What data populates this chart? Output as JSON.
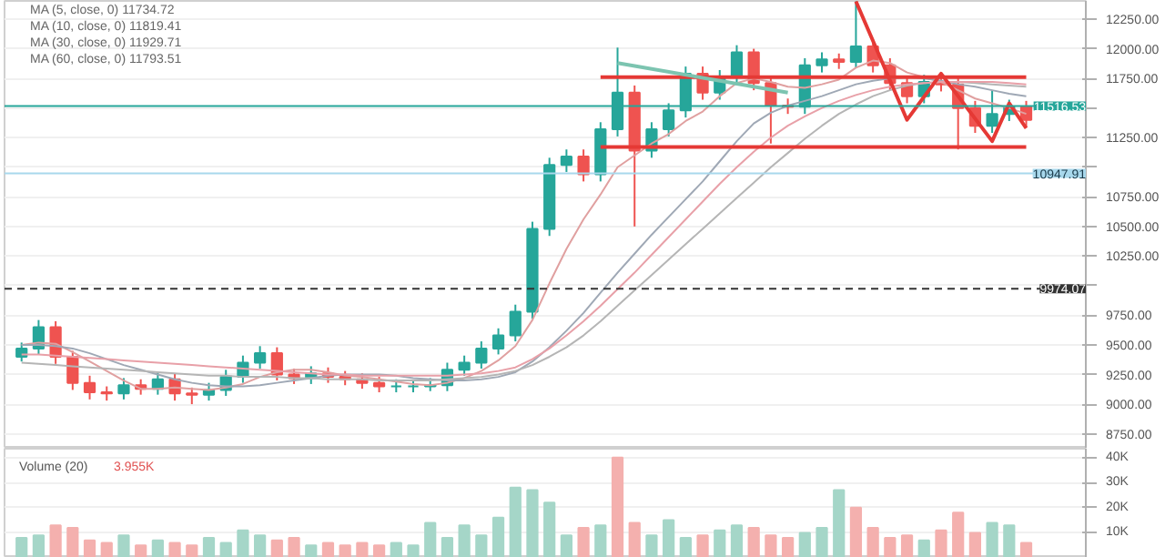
{
  "chart_data": [
    {
      "type": "candlestick",
      "categories": [
        null,
        null,
        null,
        null,
        null,
        null,
        null,
        null,
        null,
        null,
        null,
        null,
        null,
        null,
        null,
        null,
        null,
        null,
        null,
        null,
        null,
        null,
        null,
        null,
        null,
        null,
        null,
        null,
        null,
        null,
        null,
        null,
        null,
        null,
        null,
        null,
        null,
        null,
        null,
        null,
        null,
        null,
        null,
        null,
        null,
        null,
        null,
        null,
        null,
        null,
        null,
        null,
        null,
        null,
        null,
        null,
        null,
        null,
        null,
        null
      ],
      "ohlc": [
        [
          9400,
          9520,
          9360,
          9470
        ],
        [
          9470,
          9710,
          9420,
          9650
        ],
        [
          9650,
          9700,
          9340,
          9400
        ],
        [
          9400,
          9450,
          9120,
          9180
        ],
        [
          9180,
          9240,
          9040,
          9100
        ],
        [
          9100,
          9150,
          9030,
          9090
        ],
        [
          9090,
          9220,
          9040,
          9160
        ],
        [
          9160,
          9210,
          9080,
          9130
        ],
        [
          9130,
          9270,
          9080,
          9210
        ],
        [
          9210,
          9260,
          9030,
          9090
        ],
        [
          9090,
          9140,
          9000,
          9080
        ],
        [
          9080,
          9180,
          9030,
          9120
        ],
        [
          9120,
          9290,
          9070,
          9230
        ],
        [
          9230,
          9410,
          9180,
          9350
        ],
        [
          9350,
          9490,
          9300,
          9430
        ],
        [
          9430,
          9480,
          9200,
          9250
        ],
        [
          9250,
          9300,
          9170,
          9220
        ],
        [
          9220,
          9320,
          9170,
          9260
        ],
        [
          9260,
          9310,
          9180,
          9230
        ],
        [
          9230,
          9280,
          9160,
          9210
        ],
        [
          9210,
          9260,
          9130,
          9180
        ],
        [
          9180,
          9230,
          9100,
          9150
        ],
        [
          9150,
          9210,
          9100,
          9150
        ],
        [
          9150,
          9200,
          9100,
          9150
        ],
        [
          9150,
          9220,
          9110,
          9160
        ],
        [
          9160,
          9350,
          9110,
          9290
        ],
        [
          9290,
          9410,
          9240,
          9350
        ],
        [
          9350,
          9530,
          9300,
          9470
        ],
        [
          9470,
          9640,
          9420,
          9580
        ],
        [
          9580,
          9840,
          9530,
          9780
        ],
        [
          9780,
          10540,
          9720,
          10480
        ],
        [
          10480,
          11080,
          10420,
          11020
        ],
        [
          11020,
          11150,
          10960,
          11090
        ],
        [
          11090,
          11150,
          10880,
          10940
        ],
        [
          10940,
          11380,
          10880,
          11320
        ],
        [
          11320,
          12010,
          11260,
          11630
        ],
        [
          11630,
          11690,
          10500,
          11140
        ],
        [
          11140,
          11380,
          11080,
          11320
        ],
        [
          11320,
          11540,
          11260,
          11480
        ],
        [
          11480,
          11850,
          11420,
          11790
        ],
        [
          11790,
          11850,
          11570,
          11630
        ],
        [
          11630,
          11820,
          11570,
          11760
        ],
        [
          11760,
          12030,
          11700,
          11970
        ],
        [
          11970,
          12000,
          11650,
          11710
        ],
        [
          11710,
          11770,
          11200,
          11520
        ],
        [
          11520,
          11580,
          11450,
          11510
        ],
        [
          11510,
          11920,
          11450,
          11860
        ],
        [
          11860,
          11970,
          11800,
          11910
        ],
        [
          11910,
          11960,
          11830,
          11890
        ],
        [
          11890,
          12400,
          11840,
          12020
        ],
        [
          12020,
          12080,
          11800,
          11860
        ],
        [
          11860,
          11920,
          11650,
          11710
        ],
        [
          11710,
          11770,
          11540,
          11600
        ],
        [
          11600,
          11780,
          11540,
          11720
        ],
        [
          11720,
          11780,
          11640,
          11700
        ],
        [
          11700,
          11760,
          11150,
          11500
        ],
        [
          11500,
          11560,
          11290,
          11350
        ],
        [
          11350,
          11650,
          11290,
          11450
        ],
        [
          11450,
          11570,
          11390,
          11510
        ],
        [
          11510,
          11560,
          11340,
          11400
        ]
      ],
      "colors": [
        "#26a69a",
        "#26a69a",
        "#ef5350",
        "#ef5350",
        "#ef5350",
        "#ef5350",
        "#26a69a",
        "#ef5350",
        "#26a69a",
        "#ef5350",
        "#ef5350",
        "#26a69a",
        "#26a69a",
        "#26a69a",
        "#26a69a",
        "#ef5350",
        "#ef5350",
        "#26a69a",
        "#ef5350",
        "#ef5350",
        "#ef5350",
        "#ef5350",
        "#26a69a",
        "#26a69a",
        "#26a69a",
        "#26a69a",
        "#26a69a",
        "#26a69a",
        "#26a69a",
        "#26a69a",
        "#26a69a",
        "#26a69a",
        "#26a69a",
        "#ef5350",
        "#26a69a",
        "#26a69a",
        "#ef5350",
        "#26a69a",
        "#26a69a",
        "#26a69a",
        "#ef5350",
        "#26a69a",
        "#26a69a",
        "#ef5350",
        "#ef5350",
        "#ef5350",
        "#26a69a",
        "#26a69a",
        "#ef5350",
        "#26a69a",
        "#ef5350",
        "#ef5350",
        "#ef5350",
        "#26a69a",
        "#ef5350",
        "#ef5350",
        "#ef5350",
        "#26a69a",
        "#26a69a",
        "#ef5350"
      ],
      "ylim": [
        8624,
        12404
      ],
      "yticks": [
        {
          "value": 8750,
          "label": "8750.00"
        },
        {
          "value": 9000,
          "label": "9000.00"
        },
        {
          "value": 9250,
          "label": "9250.00"
        },
        {
          "value": 9500,
          "label": "9500.00"
        },
        {
          "value": 9750,
          "label": "9750.00"
        },
        {
          "value": 10000,
          "label": null
        },
        {
          "value": 10250,
          "label": "10250.00"
        },
        {
          "value": 10500,
          "label": "10500.00"
        },
        {
          "value": 10750,
          "label": "10750.00"
        },
        {
          "value": 11000,
          "label": null
        },
        {
          "value": 11250,
          "label": "11250.00"
        },
        {
          "value": 11500,
          "label": null
        },
        {
          "value": 11750,
          "label": "11750.00"
        },
        {
          "value": 12000,
          "label": "12000.00"
        },
        {
          "value": 12250,
          "label": "12250.00"
        }
      ],
      "tick_labels": "y",
      "grid": "y",
      "series": [
        {
          "color": "#e0a0a0",
          "type": "line",
          "values": [
            9500,
            9520,
            9510,
            9440,
            9360,
            9280,
            9200,
            9130,
            9130,
            9140,
            9130,
            9120,
            9140,
            9170,
            9230,
            9270,
            9290,
            9290,
            9270,
            9240,
            9230,
            9210,
            9190,
            9170,
            9160,
            9180,
            9220,
            9280,
            9370,
            9490,
            9710,
            10020,
            10310,
            10560,
            10770,
            11000,
            11100,
            11200,
            11280,
            11390,
            11470,
            11600,
            11710,
            11750,
            11720,
            11680,
            11670,
            11700,
            11740,
            11840,
            11900,
            11880,
            11800,
            11760,
            11720,
            11650,
            11580,
            11540,
            11500,
            11450
          ]
        },
        {
          "color": "#9fa8b5",
          "type": "line",
          "values": [
            9500,
            9500,
            9490,
            9470,
            9430,
            9380,
            9330,
            9290,
            9250,
            9210,
            9180,
            9160,
            9150,
            9150,
            9160,
            9180,
            9200,
            9220,
            9240,
            9250,
            9250,
            9250,
            9240,
            9220,
            9210,
            9200,
            9200,
            9210,
            9230,
            9270,
            9360,
            9480,
            9620,
            9770,
            9940,
            10110,
            10270,
            10430,
            10580,
            10730,
            10880,
            11050,
            11220,
            11370,
            11460,
            11520,
            11560,
            11600,
            11650,
            11700,
            11730,
            11750,
            11760,
            11750,
            11730,
            11700,
            11680,
            11650,
            11620,
            11600
          ]
        },
        {
          "color": "#b5b5b5",
          "type": "line",
          "values": [
            9350,
            9340,
            9330,
            9320,
            9310,
            9300,
            9290,
            9280,
            9270,
            9260,
            9250,
            9240,
            9240,
            9230,
            9230,
            9230,
            9220,
            9220,
            9210,
            9210,
            9210,
            9200,
            9200,
            9200,
            9200,
            9210,
            9220,
            9230,
            9250,
            9280,
            9330,
            9400,
            9480,
            9580,
            9700,
            9830,
            9960,
            10090,
            10220,
            10350,
            10480,
            10610,
            10740,
            10870,
            11000,
            11120,
            11240,
            11350,
            11450,
            11530,
            11600,
            11650,
            11690,
            11710,
            11720,
            11720,
            11710,
            11700,
            11690,
            11680
          ]
        },
        {
          "color": "#e8a0a8",
          "type": "line",
          "values": [
            9420,
            9420,
            9410,
            9400,
            9390,
            9380,
            9370,
            9360,
            9350,
            9340,
            9330,
            9320,
            9310,
            9300,
            9290,
            9280,
            9270,
            9260,
            9250,
            9250,
            9240,
            9240,
            9240,
            9240,
            9240,
            9240,
            9250,
            9260,
            9280,
            9310,
            9380,
            9470,
            9580,
            9700,
            9830,
            9970,
            10110,
            10260,
            10410,
            10560,
            10710,
            10860,
            11000,
            11130,
            11250,
            11350,
            11430,
            11500,
            11560,
            11610,
            11650,
            11680,
            11700,
            11710,
            11720,
            11720,
            11720,
            11720,
            11710,
            11700
          ]
        },
        {
          "color": "#e53935",
          "type": "line",
          "values": [
            null,
            null,
            null,
            null,
            null,
            null,
            null,
            null,
            null,
            null,
            null,
            null,
            null,
            null,
            null,
            null,
            null,
            null,
            null,
            null,
            null,
            null,
            null,
            null,
            null,
            null,
            null,
            null,
            null,
            null,
            null,
            null,
            null,
            null,
            11760,
            null,
            null,
            null,
            null,
            null,
            null,
            null,
            null,
            null,
            null,
            null,
            null,
            null,
            null,
            null,
            null,
            null,
            null,
            null,
            null,
            null,
            null,
            null,
            null,
            11760
          ]
        },
        {
          "color": "#e53935",
          "type": "line",
          "values": [
            null,
            null,
            null,
            null,
            null,
            null,
            null,
            null,
            null,
            null,
            null,
            null,
            null,
            null,
            null,
            null,
            null,
            null,
            null,
            null,
            null,
            null,
            null,
            null,
            null,
            null,
            null,
            null,
            null,
            null,
            null,
            null,
            null,
            null,
            11170,
            null,
            null,
            null,
            null,
            null,
            null,
            null,
            null,
            null,
            null,
            null,
            null,
            null,
            null,
            null,
            null,
            null,
            null,
            null,
            null,
            null,
            null,
            null,
            null,
            11170
          ]
        },
        {
          "color": "#e53935",
          "type": "line",
          "values": [
            null,
            null,
            null,
            null,
            null,
            null,
            null,
            null,
            null,
            null,
            null,
            null,
            null,
            null,
            null,
            null,
            null,
            null,
            null,
            null,
            null,
            null,
            null,
            null,
            null,
            null,
            null,
            null,
            null,
            null,
            null,
            null,
            null,
            null,
            null,
            null,
            null,
            null,
            null,
            null,
            null,
            null,
            null,
            null,
            null,
            null,
            null,
            null,
            null,
            12400,
            null,
            null,
            11400,
            null,
            11790,
            null,
            null,
            11220,
            11540,
            11330
          ]
        },
        {
          "color": "#7cc4b0",
          "type": "line",
          "values": [
            null,
            null,
            null,
            null,
            null,
            null,
            null,
            null,
            null,
            null,
            null,
            null,
            null,
            null,
            null,
            null,
            null,
            null,
            null,
            null,
            null,
            null,
            null,
            null,
            null,
            null,
            null,
            null,
            null,
            null,
            null,
            null,
            null,
            null,
            null,
            11880,
            null,
            null,
            null,
            null,
            null,
            null,
            null,
            null,
            null,
            11630,
            null,
            null,
            null,
            null,
            null,
            null,
            null,
            null,
            null,
            null,
            null,
            null,
            null,
            null
          ]
        }
      ],
      "ref_lines": [
        {
          "axis": "y",
          "value": 11516.53,
          "label": "11516.53",
          "color": "#26a69a"
        },
        {
          "axis": "y",
          "value": 10947.91,
          "label": "10947.91",
          "color": "#a8d8ec"
        },
        {
          "axis": "y",
          "value": 9974.07,
          "label": "9974.07",
          "color": "#333333",
          "line_style": "dashed"
        }
      ],
      "annotations": [
        "MA (5, close, 0)  11734.72",
        "MA (10, close, 0)  11819.41",
        "MA (30, close, 0)  11929.71",
        "MA (60, close, 0)  11793.51"
      ]
    },
    {
      "type": "bar",
      "title": "Volume (20)",
      "annotations": [
        "3.955K"
      ],
      "categories": [
        null,
        null,
        null,
        null,
        null,
        null,
        null,
        null,
        null,
        null,
        null,
        null,
        null,
        null,
        null,
        null,
        null,
        null,
        null,
        null,
        null,
        null,
        null,
        null,
        null,
        null,
        null,
        null,
        null,
        null,
        null,
        null,
        null,
        null,
        null,
        null,
        null,
        null,
        null,
        null,
        null,
        null,
        null,
        null,
        null,
        null,
        null,
        null,
        null,
        null,
        null,
        null,
        null,
        null,
        null,
        null,
        null,
        null,
        null,
        null
      ],
      "values": [
        8000,
        9000,
        13000,
        12000,
        7000,
        6000,
        9000,
        5000,
        7000,
        6000,
        5000,
        8000,
        6000,
        11000,
        9000,
        7000,
        8000,
        5000,
        6000,
        5000,
        6000,
        5000,
        6000,
        5000,
        14000,
        8000,
        13000,
        9000,
        16000,
        28000,
        27000,
        22000,
        9000,
        12000,
        13000,
        40000,
        14000,
        9000,
        15000,
        8000,
        9000,
        11000,
        13000,
        12000,
        9000,
        8000,
        10000,
        12000,
        27000,
        20000,
        12000,
        8000,
        9000,
        7000,
        11000,
        18000,
        10000,
        14000,
        13000,
        6000
      ],
      "colors": [
        "#a5d6c8",
        "#a5d6c8",
        "#f4b0ae",
        "#f4b0ae",
        "#f4b0ae",
        "#f4b0ae",
        "#a5d6c8",
        "#f4b0ae",
        "#a5d6c8",
        "#f4b0ae",
        "#f4b0ae",
        "#a5d6c8",
        "#a5d6c8",
        "#a5d6c8",
        "#a5d6c8",
        "#f4b0ae",
        "#f4b0ae",
        "#a5d6c8",
        "#f4b0ae",
        "#f4b0ae",
        "#f4b0ae",
        "#f4b0ae",
        "#a5d6c8",
        "#a5d6c8",
        "#a5d6c8",
        "#a5d6c8",
        "#a5d6c8",
        "#a5d6c8",
        "#a5d6c8",
        "#a5d6c8",
        "#a5d6c8",
        "#a5d6c8",
        "#a5d6c8",
        "#f4b0ae",
        "#a5d6c8",
        "#f4b0ae",
        "#f4b0ae",
        "#a5d6c8",
        "#a5d6c8",
        "#a5d6c8",
        "#f4b0ae",
        "#a5d6c8",
        "#a5d6c8",
        "#f4b0ae",
        "#f4b0ae",
        "#f4b0ae",
        "#a5d6c8",
        "#a5d6c8",
        "#a5d6c8",
        "#f4b0ae",
        "#f4b0ae",
        "#f4b0ae",
        "#f4b0ae",
        "#a5d6c8",
        "#f4b0ae",
        "#f4b0ae",
        "#f4b0ae",
        "#a5d6c8",
        "#a5d6c8",
        "#f4b0ae"
      ],
      "ylim": [
        0,
        43500
      ],
      "yticks": [
        {
          "value": 10000,
          "label": "10K"
        },
        {
          "value": 20000,
          "label": "20K"
        },
        {
          "value": 30000,
          "label": "30K"
        },
        {
          "value": 40000,
          "label": "40K"
        }
      ],
      "tick_labels": "y",
      "grid": "y"
    }
  ]
}
